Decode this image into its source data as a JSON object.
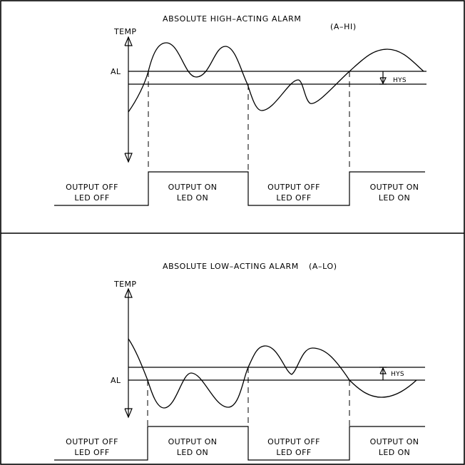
{
  "panels": [
    {
      "title": "ABSOLUTE HIGH–ACTING ALARM",
      "code": "(A–HI)",
      "y_axis_label": "TEMP",
      "setpoint_label": "AL",
      "hysteresis_label": "HYS",
      "states": [
        {
          "line1": "OUTPUT OFF",
          "line2": "LED OFF"
        },
        {
          "line1": "OUTPUT ON",
          "line2": "LED ON"
        },
        {
          "line1": "OUTPUT OFF",
          "line2": "LED OFF"
        },
        {
          "line1": "OUTPUT ON",
          "line2": "LED ON"
        }
      ]
    },
    {
      "title": "ABSOLUTE LOW–ACTING ALARM",
      "code": "(A–LO)",
      "y_axis_label": "TEMP",
      "setpoint_label": "AL",
      "hysteresis_label": "HYS",
      "states": [
        {
          "line1": "OUTPUT OFF",
          "line2": "LED OFF"
        },
        {
          "line1": "OUTPUT ON",
          "line2": "LED ON"
        },
        {
          "line1": "OUTPUT OFF",
          "line2": "LED OFF"
        },
        {
          "line1": "OUTPUT ON",
          "line2": "LED ON"
        }
      ]
    }
  ]
}
